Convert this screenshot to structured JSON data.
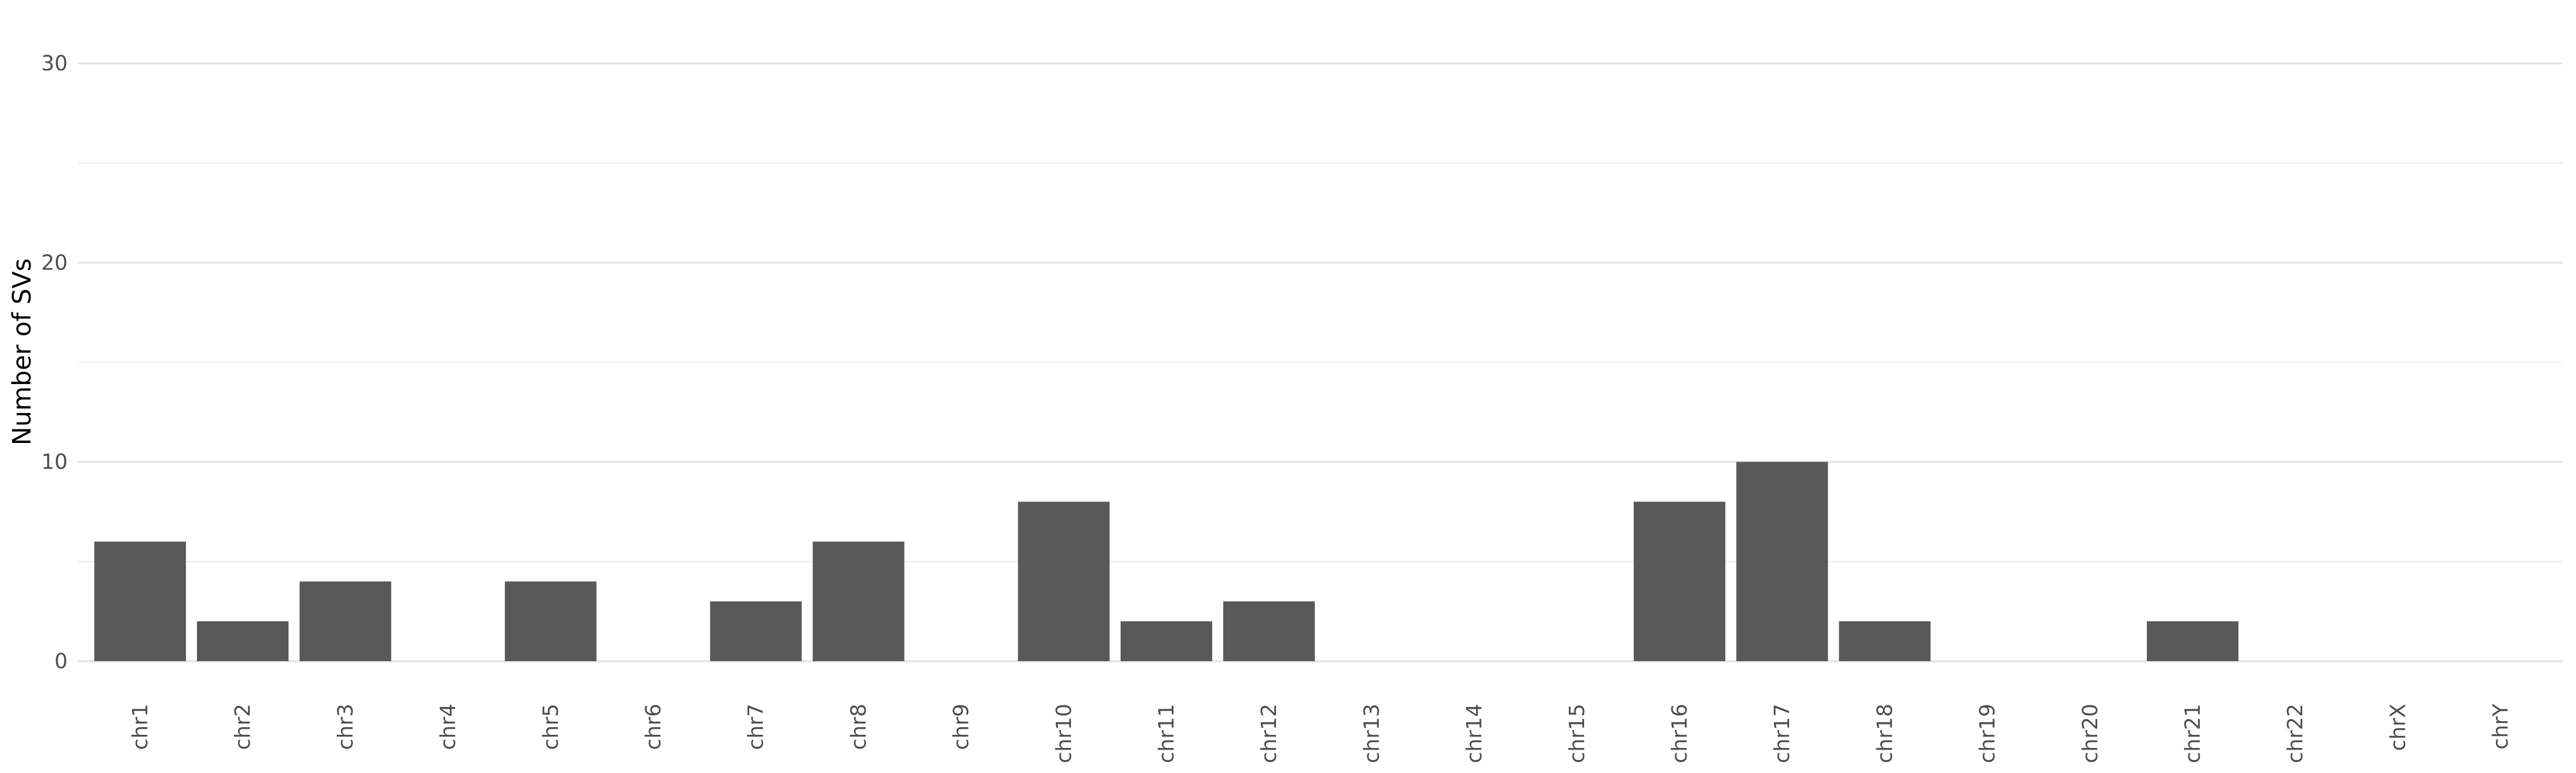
{
  "chart_data": {
    "type": "bar",
    "title": "",
    "xlabel": "",
    "ylabel": "Number of SVs",
    "categories": [
      "chr1",
      "chr2",
      "chr3",
      "chr4",
      "chr5",
      "chr6",
      "chr7",
      "chr8",
      "chr9",
      "chr10",
      "chr11",
      "chr12",
      "chr13",
      "chr14",
      "chr15",
      "chr16",
      "chr17",
      "chr18",
      "chr19",
      "chr20",
      "chr21",
      "chr22",
      "chrX",
      "chrY"
    ],
    "values": [
      6,
      2,
      4,
      0,
      4,
      0,
      3,
      6,
      0,
      8,
      2,
      3,
      0,
      0,
      0,
      8,
      10,
      2,
      0,
      0,
      2,
      0,
      0,
      0
    ],
    "ylim": [
      0,
      30
    ],
    "yticks": [
      0,
      10,
      20,
      30
    ],
    "grid": true,
    "legend": "none",
    "bar_color": "#595959",
    "grid_color": "#e6e6e6"
  }
}
